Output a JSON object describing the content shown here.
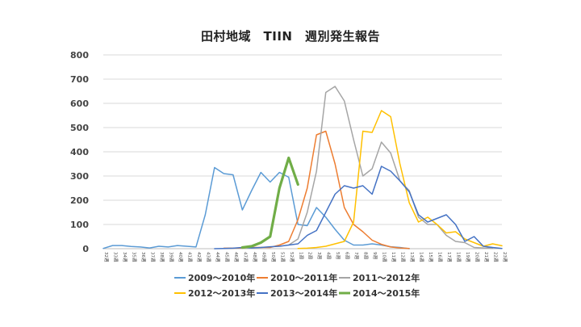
{
  "chart_data": {
    "type": "line",
    "title": "田村地域　TIIN　週別発生報告",
    "xlabel": "",
    "ylabel": "",
    "ylim": [
      0,
      800
    ],
    "yticks": [
      0,
      100,
      200,
      300,
      400,
      500,
      600,
      700,
      800
    ],
    "grid": true,
    "legend_position": "bottom",
    "categories": [
      "32週",
      "33週",
      "34週",
      "35週",
      "36週",
      "37週",
      "38週",
      "39週",
      "40週",
      "41週",
      "42週",
      "43週",
      "44週",
      "45週",
      "46週",
      "47週",
      "48週",
      "49週",
      "50週",
      "51週",
      "52週",
      "1週",
      "2週",
      "3週",
      "4週",
      "5週",
      "6週",
      "7週",
      "8週",
      "9週",
      "10週",
      "11週",
      "12週",
      "13週",
      "14週",
      "15週",
      "16週",
      "17週",
      "18週",
      "19週",
      "20週",
      "21週",
      "22週",
      "23週"
    ],
    "series": [
      {
        "name": "2009～2010年",
        "color": "#5B9BD5",
        "width": 1.5,
        "values": [
          1,
          13,
          13,
          9,
          7,
          3,
          10,
          7,
          13,
          10,
          7,
          140,
          335,
          310,
          305,
          160,
          240,
          315,
          275,
          315,
          295,
          100,
          95,
          170,
          130,
          80,
          35,
          15,
          15,
          20,
          15,
          8,
          5,
          0,
          null,
          null,
          null,
          null,
          null,
          null,
          null,
          null,
          null,
          null
        ]
      },
      {
        "name": "2010～2011年",
        "color": "#ED7D31",
        "width": 1.5,
        "values": [
          null,
          null,
          null,
          null,
          null,
          null,
          null,
          null,
          null,
          null,
          null,
          null,
          null,
          2,
          2,
          3,
          5,
          5,
          5,
          15,
          30,
          120,
          250,
          470,
          485,
          350,
          170,
          100,
          70,
          35,
          18,
          7,
          3,
          1,
          null,
          null,
          null,
          null,
          null,
          null,
          null,
          null,
          null,
          null
        ]
      },
      {
        "name": "2011～2012年",
        "color": "#A5A5A5",
        "width": 1.5,
        "values": [
          null,
          null,
          null,
          null,
          null,
          null,
          null,
          null,
          null,
          null,
          null,
          null,
          null,
          null,
          null,
          null,
          null,
          null,
          null,
          null,
          15,
          40,
          150,
          320,
          645,
          670,
          610,
          450,
          300,
          330,
          440,
          395,
          280,
          240,
          130,
          100,
          100,
          55,
          30,
          25,
          5,
          3,
          2,
          null
        ]
      },
      {
        "name": "2012～2013年",
        "color": "#FFC000",
        "width": 1.5,
        "values": [
          null,
          null,
          null,
          null,
          null,
          null,
          null,
          null,
          null,
          null,
          null,
          null,
          null,
          null,
          null,
          null,
          null,
          null,
          null,
          null,
          null,
          1,
          2,
          5,
          10,
          20,
          30,
          110,
          485,
          480,
          570,
          545,
          350,
          190,
          110,
          130,
          100,
          65,
          70,
          40,
          25,
          10,
          20,
          12
        ]
      },
      {
        "name": "2013～2014年",
        "color": "#4472C4",
        "width": 1.5,
        "values": [
          null,
          null,
          null,
          null,
          null,
          null,
          null,
          null,
          null,
          null,
          null,
          null,
          0,
          1,
          2,
          5,
          3,
          5,
          8,
          10,
          15,
          20,
          55,
          75,
          150,
          225,
          260,
          250,
          260,
          225,
          340,
          320,
          280,
          235,
          140,
          110,
          125,
          140,
          100,
          30,
          50,
          10,
          5,
          1
        ]
      },
      {
        "name": "2014～2015年",
        "color": "#70AD47",
        "width": 3.2,
        "values": [
          null,
          null,
          null,
          null,
          null,
          null,
          null,
          null,
          null,
          null,
          null,
          null,
          null,
          null,
          null,
          5,
          10,
          25,
          50,
          250,
          375,
          265,
          null,
          null,
          null,
          null,
          null,
          null,
          null,
          null,
          null,
          null,
          null,
          null,
          null,
          null,
          null,
          null,
          null,
          null,
          null,
          null,
          null,
          null
        ]
      }
    ]
  }
}
